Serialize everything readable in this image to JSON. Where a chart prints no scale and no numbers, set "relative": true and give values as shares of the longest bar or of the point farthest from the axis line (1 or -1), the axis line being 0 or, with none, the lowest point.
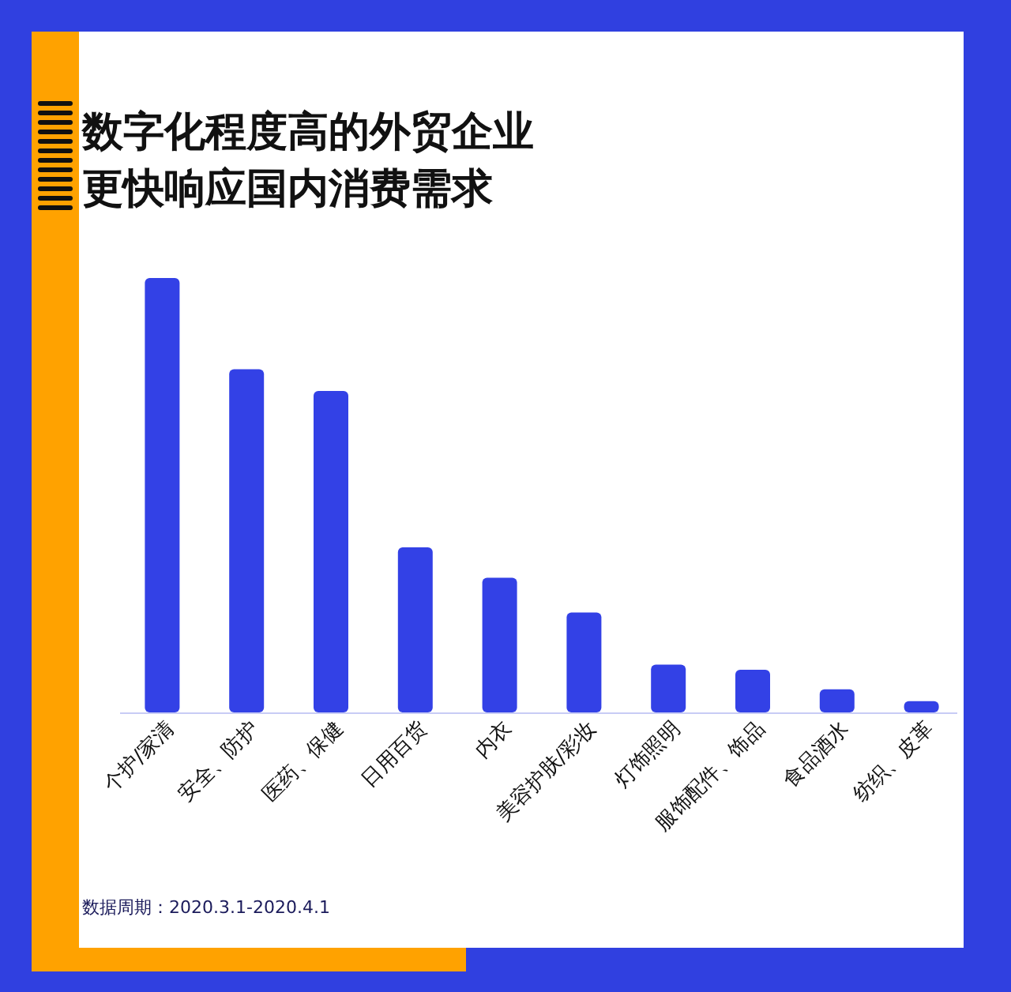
{
  "chart_data": {
    "type": "bar",
    "relative": true,
    "title": "数字化程度高的外贸企业更快响应国内消费需求",
    "categories": [
      "个护/家清",
      "安全、防护",
      "医药、保健",
      "日用百货",
      "内衣",
      "美容护肤/彩妆",
      "灯饰照明",
      "服饰配件、饰品",
      "食品酒水",
      "纺织、皮革"
    ],
    "values": [
      1,
      0.79,
      0.74,
      0.38,
      0.31,
      0.23,
      0.11,
      0.098,
      0.053,
      0.026
    ],
    "color": "#3341e6",
    "annotations": [
      "数据周期：2020.3.1-2020.4.1"
    ]
  }
}
